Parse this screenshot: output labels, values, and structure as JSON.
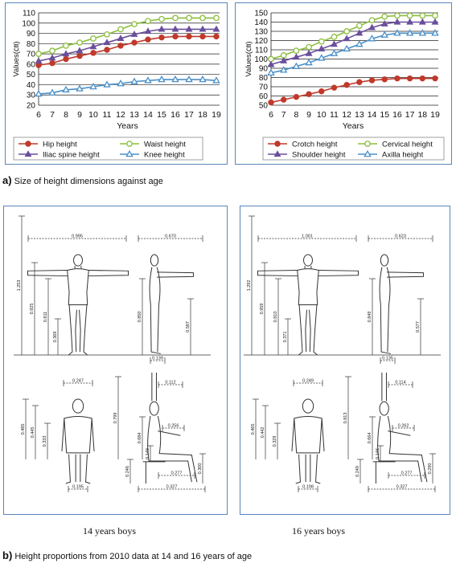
{
  "chart_data": [
    {
      "type": "line",
      "ylabel": "Values(㎝)",
      "xlabel": "Years",
      "x": [
        6,
        7,
        8,
        9,
        10,
        11,
        12,
        13,
        14,
        15,
        16,
        17,
        18,
        19
      ],
      "ylim": [
        20,
        110
      ],
      "yticks": [
        20,
        30,
        40,
        50,
        60,
        70,
        80,
        90,
        100,
        110
      ],
      "grid": true,
      "legend_position": "bottom",
      "series": [
        {
          "name": "Hip height",
          "color": "#c0392b",
          "marker": "circle",
          "values": [
            59,
            61,
            65,
            68,
            71,
            74,
            78,
            81,
            84,
            86,
            87,
            87,
            87,
            87
          ]
        },
        {
          "name": "Waist height",
          "color": "#8bbf3c",
          "marker": "circle-open",
          "values": [
            70,
            73,
            78,
            81,
            85,
            89,
            94,
            99,
            102,
            104,
            105,
            105,
            105,
            105
          ]
        },
        {
          "name": "Iliac spine height",
          "color": "#6a4f9c",
          "marker": "triangle",
          "values": [
            63,
            66,
            70,
            73,
            77,
            81,
            85,
            89,
            92,
            94,
            94,
            94,
            94,
            94
          ]
        },
        {
          "name": "Knee height",
          "color": "#4a90c8",
          "marker": "triangle-open",
          "values": [
            31,
            32,
            35,
            36,
            38,
            40,
            41,
            43,
            44,
            45,
            45,
            45,
            45,
            44
          ]
        }
      ]
    },
    {
      "type": "line",
      "ylabel": "Values(㎝)",
      "xlabel": "Years",
      "x": [
        6,
        7,
        8,
        9,
        10,
        11,
        12,
        13,
        14,
        15,
        16,
        17,
        18,
        19
      ],
      "ylim": [
        50,
        150
      ],
      "yticks": [
        50,
        60,
        70,
        80,
        90,
        100,
        110,
        120,
        130,
        140,
        150
      ],
      "grid": true,
      "legend_position": "bottom",
      "series": [
        {
          "name": "Crotch height",
          "color": "#c0392b",
          "marker": "circle",
          "values": [
            53,
            56,
            59,
            62,
            65,
            69,
            72,
            75,
            77,
            78,
            79,
            79,
            79,
            79
          ]
        },
        {
          "name": "Cervical height",
          "color": "#8bbf3c",
          "marker": "circle-open",
          "values": [
            100,
            104,
            109,
            113,
            119,
            124,
            130,
            136,
            142,
            146,
            147,
            147,
            147,
            147
          ]
        },
        {
          "name": "Shoulder height",
          "color": "#6a4f9c",
          "marker": "triangle",
          "values": [
            94,
            98,
            102,
            106,
            111,
            116,
            122,
            128,
            134,
            138,
            140,
            140,
            140,
            140
          ]
        },
        {
          "name": "Axilla height",
          "color": "#4a90c8",
          "marker": "triangle-open",
          "values": [
            85,
            88,
            92,
            96,
            101,
            106,
            111,
            116,
            122,
            126,
            128,
            128,
            128,
            128
          ]
        }
      ]
    }
  ],
  "captions": {
    "a_letter": "a)",
    "a_text": "Size of height dimensions against age",
    "b_letter": "b)",
    "b_text": "Height proportions   from 2010 data at 14 and 16 years of age"
  },
  "figures": {
    "boys14": {
      "label": "14 years boys",
      "standing": {
        "arm_span": "0.995",
        "height": "1.253",
        "shoulder": "0.925",
        "crotch": "0.811",
        "knee": "0.369",
        "side_width": "0.670",
        "side_chest": "0.850",
        "side_hip": "0.587",
        "foot": "0.139"
      },
      "seated": {
        "shoulder_w": "0.247",
        "sit_h": "0.485",
        "sit_shoulder": "0.445",
        "waist": "0.333",
        "hip_w": "0.195",
        "reach": "0.799",
        "head": "0.112",
        "upper": "0.684",
        "elbow": "0.256",
        "thigh": "0.149",
        "seat": "0.246",
        "knee_h": "0.300",
        "thigh_len": "0.277",
        "leg": "0.327"
      }
    },
    "boys16": {
      "label": "16 years boys",
      "standing": {
        "arm_span": "1.001",
        "height": "1.292",
        "shoulder": "0.959",
        "crotch": "0.810",
        "knee": "0.371",
        "side_width": "0.623",
        "side_chest": "0.849",
        "side_hip": "0.577",
        "foot": "0.135"
      },
      "seated": {
        "shoulder_w": "0.249",
        "sit_h": "0.465",
        "sit_shoulder": "0.442",
        "waist": "0.329",
        "hip_w": "0.198",
        "reach": "0.813",
        "head": "0.114",
        "upper": "0.664",
        "elbow": "0.262",
        "thigh": "0.146",
        "seat": "0.249",
        "knee_h": "0.290",
        "thigh_len": "0.277",
        "leg": "0.327"
      }
    }
  }
}
